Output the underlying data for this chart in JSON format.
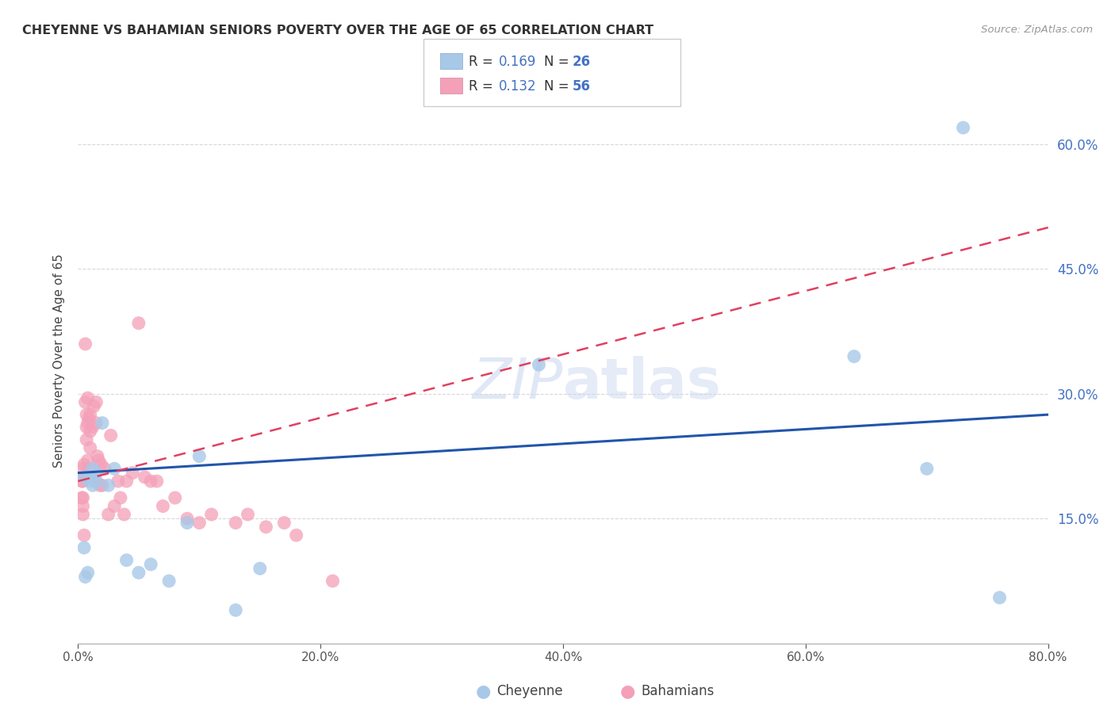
{
  "title": "CHEYENNE VS BAHAMIAN SENIORS POVERTY OVER THE AGE OF 65 CORRELATION CHART",
  "source": "Source: ZipAtlas.com",
  "ylabel": "Seniors Poverty Over the Age of 65",
  "cheyenne_color": "#a8c8e8",
  "bahamian_color": "#f4a0b8",
  "cheyenne_line_color": "#2255aa",
  "bahamian_line_color": "#e04060",
  "cheyenne_R": 0.169,
  "cheyenne_N": 26,
  "bahamian_R": 0.132,
  "bahamian_N": 56,
  "cheyenne_x": [
    0.005,
    0.005,
    0.006,
    0.008,
    0.01,
    0.01,
    0.012,
    0.012,
    0.015,
    0.015,
    0.02,
    0.025,
    0.03,
    0.04,
    0.05,
    0.06,
    0.075,
    0.09,
    0.1,
    0.13,
    0.15,
    0.38,
    0.64,
    0.7,
    0.73,
    0.76
  ],
  "cheyenne_y": [
    0.2,
    0.115,
    0.08,
    0.085,
    0.2,
    0.195,
    0.21,
    0.19,
    0.205,
    0.195,
    0.265,
    0.19,
    0.21,
    0.1,
    0.085,
    0.095,
    0.075,
    0.145,
    0.225,
    0.04,
    0.09,
    0.335,
    0.345,
    0.21,
    0.62,
    0.055
  ],
  "bahamian_x": [
    0.003,
    0.003,
    0.003,
    0.004,
    0.004,
    0.004,
    0.004,
    0.005,
    0.005,
    0.005,
    0.006,
    0.006,
    0.007,
    0.007,
    0.007,
    0.008,
    0.008,
    0.008,
    0.009,
    0.009,
    0.01,
    0.01,
    0.01,
    0.012,
    0.013,
    0.015,
    0.015,
    0.016,
    0.017,
    0.018,
    0.019,
    0.02,
    0.022,
    0.025,
    0.027,
    0.03,
    0.033,
    0.035,
    0.038,
    0.04,
    0.045,
    0.05,
    0.055,
    0.06,
    0.065,
    0.07,
    0.08,
    0.09,
    0.1,
    0.11,
    0.13,
    0.14,
    0.155,
    0.17,
    0.18,
    0.21
  ],
  "bahamian_y": [
    0.21,
    0.195,
    0.175,
    0.195,
    0.175,
    0.165,
    0.155,
    0.215,
    0.2,
    0.13,
    0.36,
    0.29,
    0.275,
    0.26,
    0.245,
    0.295,
    0.265,
    0.22,
    0.27,
    0.21,
    0.275,
    0.255,
    0.235,
    0.26,
    0.285,
    0.29,
    0.265,
    0.225,
    0.22,
    0.19,
    0.215,
    0.19,
    0.21,
    0.155,
    0.25,
    0.165,
    0.195,
    0.175,
    0.155,
    0.195,
    0.205,
    0.385,
    0.2,
    0.195,
    0.195,
    0.165,
    0.175,
    0.15,
    0.145,
    0.155,
    0.145,
    0.155,
    0.14,
    0.145,
    0.13,
    0.075
  ],
  "xlim": [
    0.0,
    0.8
  ],
  "ylim": [
    0.0,
    0.68
  ],
  "xticks": [
    0.0,
    0.2,
    0.4,
    0.6,
    0.8
  ],
  "yticks_right": [
    0.15,
    0.3,
    0.45,
    0.6
  ],
  "background_color": "#ffffff",
  "grid_color": "#d8d8d8",
  "watermark_color": "#ccd8f0",
  "cheyenne_line_start_y": 0.205,
  "cheyenne_line_end_y": 0.275,
  "bahamian_line_start_y": 0.195,
  "bahamian_line_end_y": 0.5
}
